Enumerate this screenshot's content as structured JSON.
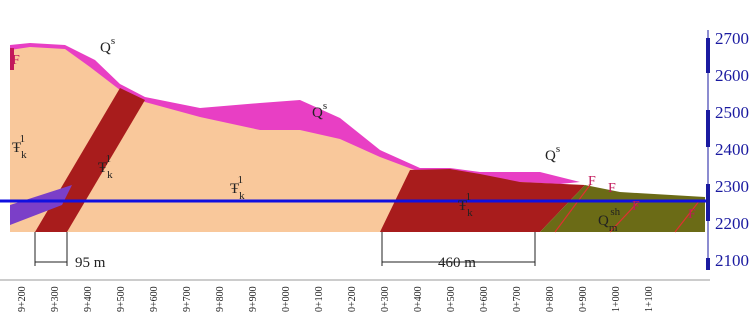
{
  "elevation_ticks": [
    2700,
    2600,
    2500,
    2400,
    2300,
    2200,
    2100
  ],
  "chainage": [
    "9+200",
    "9+300",
    "9+400",
    "9+500",
    "9+600",
    "9+700",
    "9+800",
    "9+900",
    "0+000",
    "0+100",
    "0+200",
    "0+300",
    "0+400",
    "0+500",
    "0+600",
    "0+700",
    "0+800",
    "0+900",
    "1+000",
    "1+100"
  ],
  "labels": [
    {
      "base": "Q",
      "sup": "s"
    },
    {
      "base": "Q",
      "sup": "s"
    },
    {
      "base": "Q",
      "sup": "s"
    },
    {
      "base": "Ŧ",
      "sub": "k",
      "sup": "1"
    },
    {
      "base": "Ŧ",
      "sub": "k",
      "sup": "1"
    },
    {
      "base": "Ŧ",
      "sub": "k",
      "sup": "1"
    },
    {
      "base": "Ŧ",
      "sub": "k",
      "sup": "1"
    },
    {
      "base": "Q",
      "sub": "m",
      "sup": "sh"
    }
  ],
  "faults": [
    "F",
    "F",
    "F",
    "F",
    "F"
  ],
  "dimensions": [
    "95 m",
    "460 m"
  ]
}
